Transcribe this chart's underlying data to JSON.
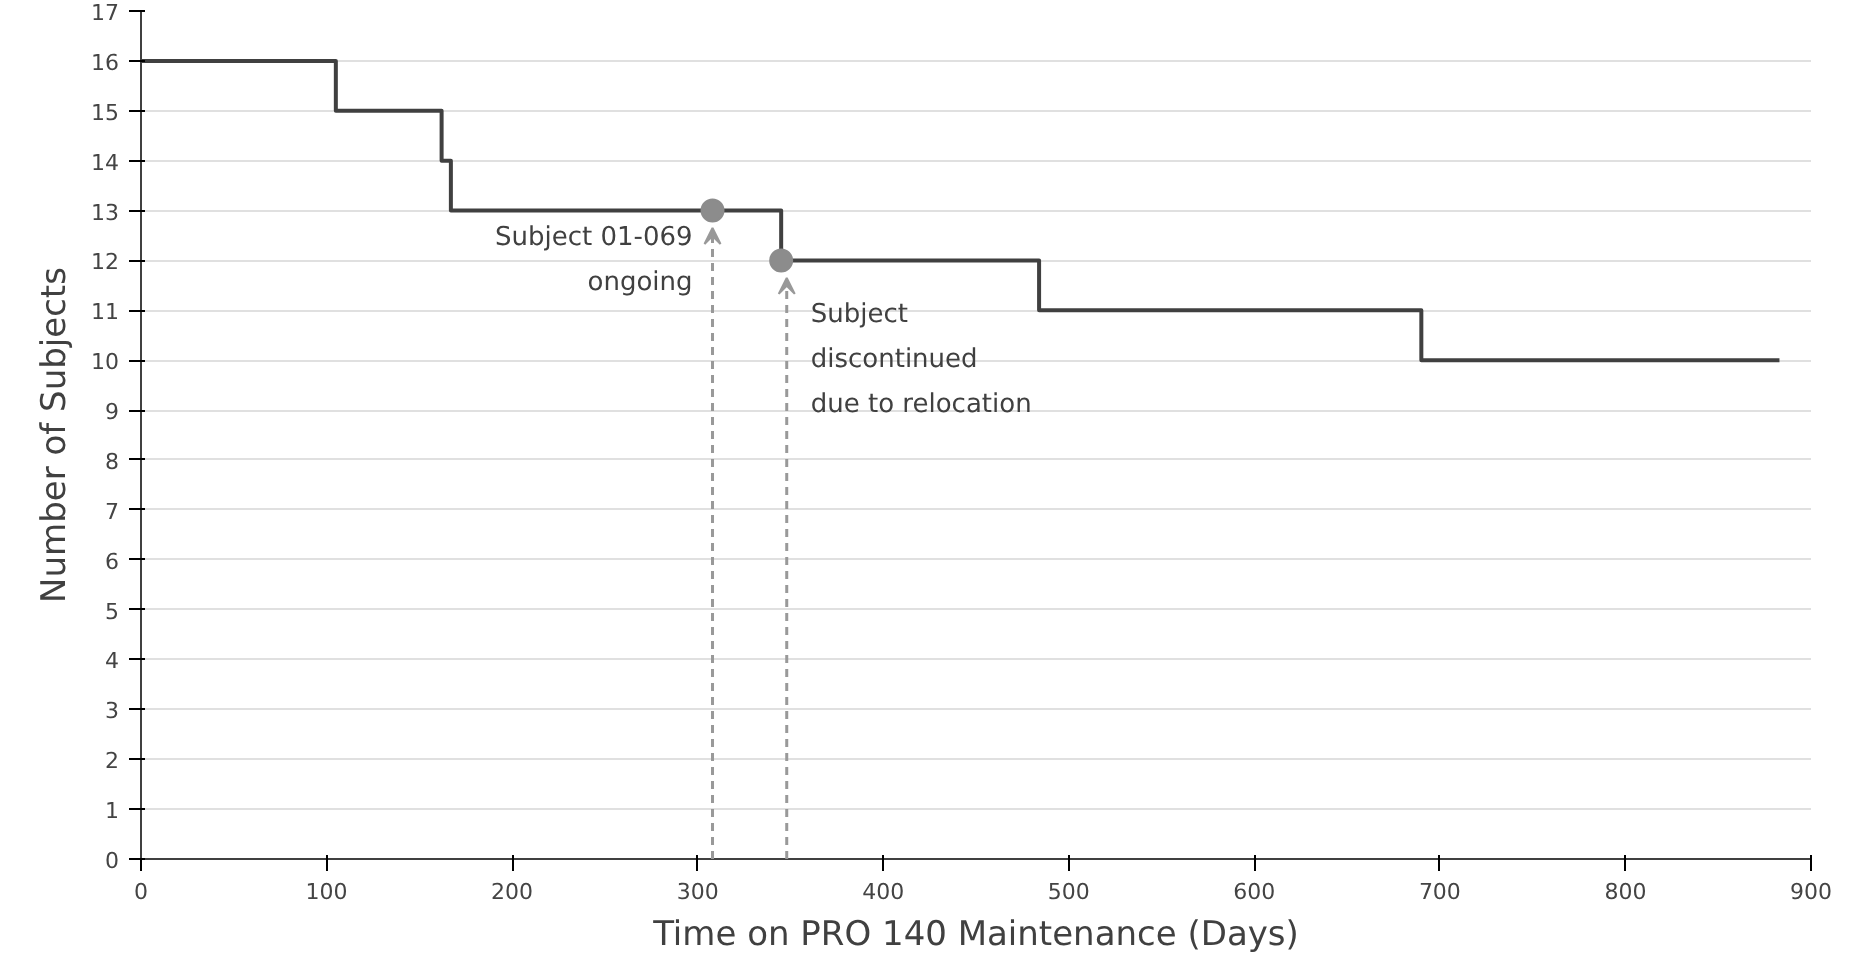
{
  "chart_data": {
    "type": "step",
    "xlabel": "Time on PRO 140 Maintenance (Days)",
    "ylabel": "Number of Subjects",
    "xlim": [
      0,
      900
    ],
    "xticks": [
      0,
      100,
      200,
      300,
      400,
      500,
      600,
      700,
      800,
      900
    ],
    "ylim": [
      0,
      17
    ],
    "yticks": [
      0,
      1,
      2,
      3,
      4,
      5,
      6,
      7,
      8,
      9,
      10,
      11,
      12,
      13,
      14,
      15,
      16,
      17
    ],
    "grid": "y",
    "series": [
      {
        "color": "#404040",
        "x": [
          0,
          105,
          162,
          167,
          345,
          484,
          690,
          883
        ],
        "values": [
          16,
          15,
          14,
          13,
          12,
          11,
          10,
          10
        ]
      },
      {
        "type": "scatter",
        "color": "#8c8c8c",
        "marker": "circle",
        "x": [
          308,
          345
        ],
        "values": [
          13,
          12
        ]
      }
    ],
    "annotations": [
      {
        "text": "Subject 01-069\nongoing",
        "x": 308,
        "y": 13
      },
      {
        "text": "Subject\ndiscontinued\ndue to relocation",
        "x": 348,
        "y": 12
      }
    ]
  }
}
